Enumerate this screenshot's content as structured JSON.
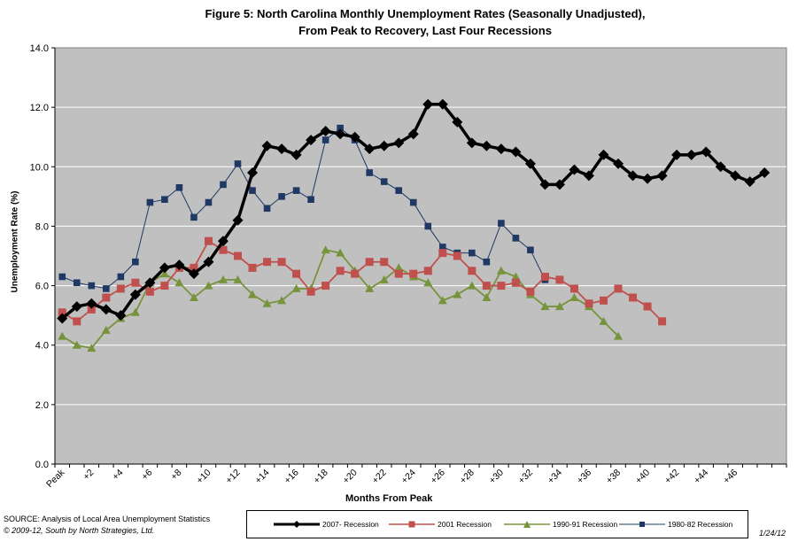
{
  "chart_data": {
    "type": "line",
    "title_line1": "Figure 5: North Carolina Monthly Unemployment Rates (Seasonally Unadjusted),",
    "title_line2": "From Peak to Recovery,  Last Four Recessions",
    "xlabel": "Months From Peak",
    "ylabel": "Unemployment Rate (%)",
    "ylim": [
      0,
      14
    ],
    "yticks": [
      "0.0",
      "2.0",
      "4.0",
      "6.0",
      "8.0",
      "10.0",
      "12.0",
      "14.0"
    ],
    "x_count": 50,
    "xtick_labels": [
      "Peak",
      "+2",
      "+4",
      "+6",
      "+8",
      "+10",
      "+12",
      "+14",
      "+16",
      "+18",
      "+20",
      "+22",
      "+24",
      "+26",
      "+28",
      "+30",
      "+32",
      "+34",
      "+36",
      "+38",
      "+40",
      "+42",
      "+44",
      "+46"
    ],
    "grid": true,
    "plot_background": "#c0c0c0",
    "series": [
      {
        "name": "2007- Recession",
        "color": "#000000",
        "marker": "diamond",
        "values": [
          4.9,
          5.3,
          5.4,
          5.2,
          5.0,
          5.7,
          6.1,
          6.6,
          6.7,
          6.4,
          6.8,
          7.5,
          8.2,
          9.8,
          10.7,
          10.6,
          10.4,
          10.9,
          11.2,
          11.1,
          11.0,
          10.6,
          10.7,
          10.8,
          11.1,
          12.1,
          12.1,
          11.5,
          10.8,
          10.7,
          10.6,
          10.5,
          10.1,
          9.4,
          9.4,
          9.9,
          9.7,
          10.4,
          10.1,
          9.7,
          9.6,
          9.7,
          10.4,
          10.4,
          10.5,
          10.0,
          9.7,
          9.5,
          9.8
        ]
      },
      {
        "name": "2001 Recession",
        "color": "#c0504d",
        "marker": "square",
        "values": [
          5.1,
          4.8,
          5.2,
          5.6,
          5.9,
          6.1,
          5.8,
          6.0,
          6.6,
          6.6,
          7.5,
          7.2,
          7.0,
          6.6,
          6.8,
          6.8,
          6.4,
          5.8,
          6.0,
          6.5,
          6.4,
          6.8,
          6.8,
          6.4,
          6.4,
          6.5,
          7.1,
          7.0,
          6.5,
          6.0,
          6.0,
          6.1,
          5.8,
          6.3,
          6.2,
          5.9,
          5.4,
          5.5,
          5.9,
          5.6,
          5.3,
          4.8
        ]
      },
      {
        "name": "1990-91 Recession",
        "color": "#77933c",
        "marker": "triangle",
        "values": [
          4.3,
          4.0,
          3.9,
          4.5,
          4.9,
          5.1,
          6.1,
          6.4,
          6.1,
          5.6,
          6.0,
          6.2,
          6.2,
          5.7,
          5.4,
          5.5,
          5.9,
          5.9,
          7.2,
          7.1,
          6.5,
          5.9,
          6.2,
          6.6,
          6.3,
          6.1,
          5.5,
          5.7,
          6.0,
          5.6,
          6.5,
          6.3,
          5.7,
          5.3,
          5.3,
          5.6,
          5.3,
          4.8,
          4.3
        ]
      },
      {
        "name": "1980-82 Recession",
        "color": "#1f3864",
        "marker": "square",
        "values": [
          6.3,
          6.1,
          6.0,
          5.9,
          6.3,
          6.8,
          8.8,
          8.9,
          9.3,
          8.3,
          8.8,
          9.4,
          10.1,
          9.2,
          8.6,
          9.0,
          9.2,
          8.9,
          10.9,
          11.3,
          10.9,
          9.8,
          9.5,
          9.2,
          8.8,
          8.0,
          7.3,
          7.1,
          7.1,
          6.8,
          8.1,
          7.6,
          7.2,
          6.2
        ]
      }
    ]
  },
  "source": {
    "line1": "SOURCE:  Analysis of Local Area Unemployment Statistics",
    "line2": "© 2009-12, South by North Strategies, Ltd."
  },
  "date": "1/24/12"
}
